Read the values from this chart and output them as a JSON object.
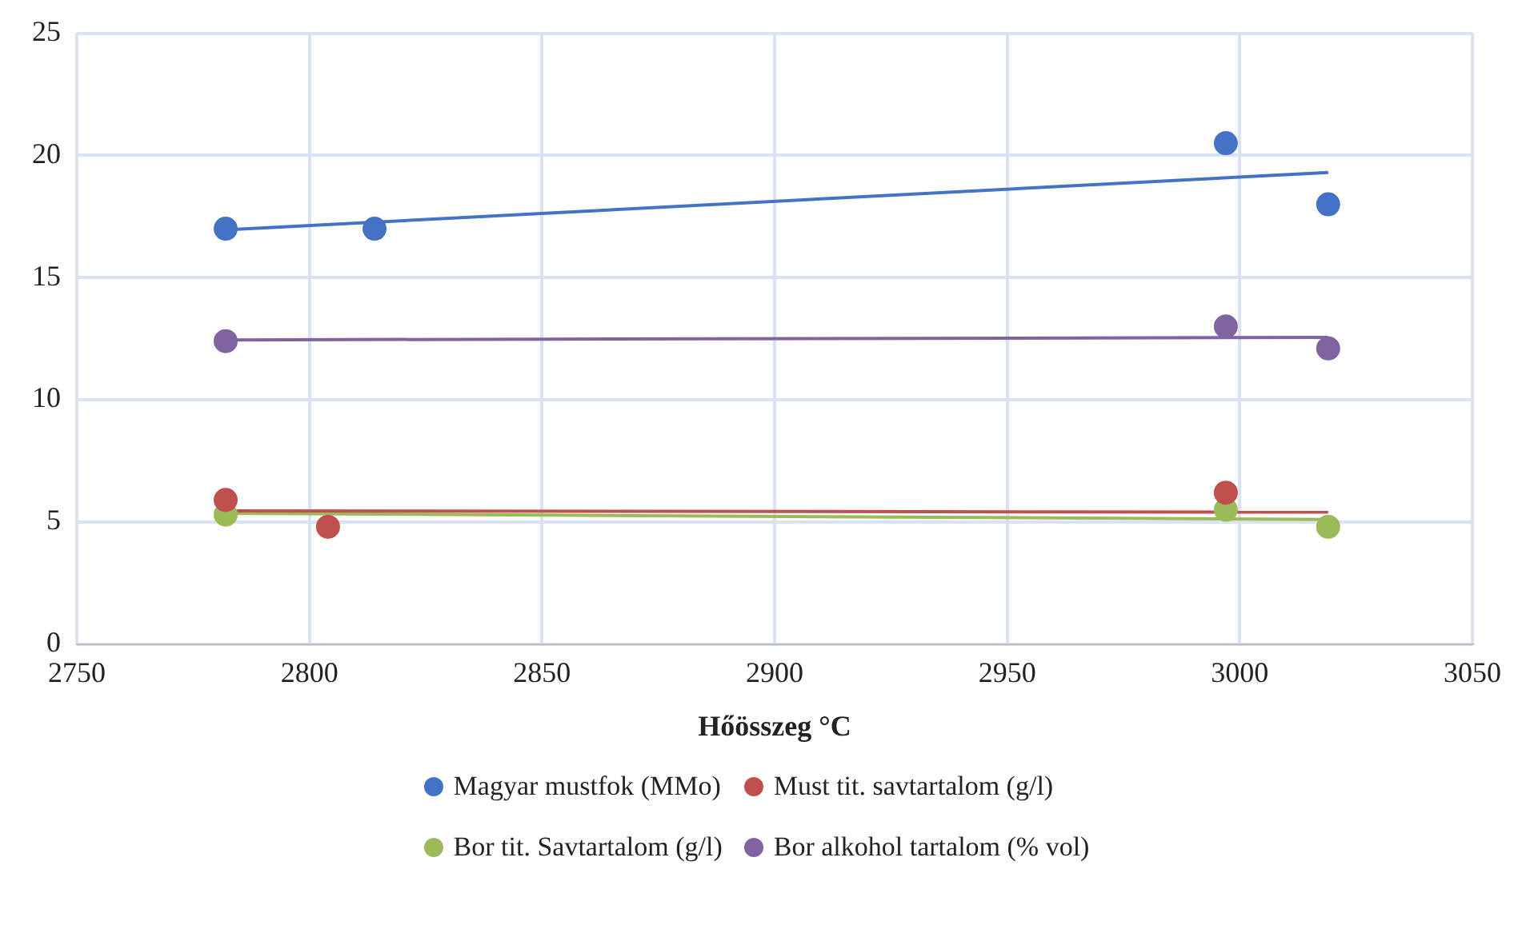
{
  "chart_data": {
    "type": "scatter",
    "xlabel": "Hőösszeg °C",
    "xlim": [
      2750,
      3050
    ],
    "xticks": [
      2750,
      2800,
      2850,
      2900,
      2950,
      3000,
      3050
    ],
    "ylim": [
      0,
      25
    ],
    "yticks": [
      0,
      5,
      10,
      15,
      20,
      25
    ],
    "grid": true,
    "legend": "bottom",
    "series": [
      {
        "name": "Magyar mustfok (MMo)",
        "color": "#4472c4",
        "x": [
          2782,
          2814,
          2997,
          3019
        ],
        "values": [
          17,
          17,
          20.5,
          18
        ],
        "marker": "circle"
      },
      {
        "name": "Must tit. savtartalom (g/l)",
        "color": "#c0504d",
        "x": [
          2782,
          2804,
          2997
        ],
        "values": [
          5.9,
          4.8,
          6.2
        ],
        "marker": "circle"
      },
      {
        "name": "Bor tit. Savtartalom (g/l)",
        "color": "#9bbb59",
        "x": [
          2782,
          2997,
          3019
        ],
        "values": [
          5.3,
          5.5,
          4.8
        ],
        "marker": "circle"
      },
      {
        "name": "Bor alkohol tartalom (% vol)",
        "color": "#8064a2",
        "x": [
          2782,
          2997,
          3019
        ],
        "values": [
          12.4,
          13,
          12.1
        ],
        "marker": "circle"
      },
      {
        "type": "line",
        "color": "#4472c4",
        "x": [
          2782,
          3019
        ],
        "values": [
          16.95,
          19.3
        ],
        "marker": "none"
      },
      {
        "type": "line",
        "color": "#c0504d",
        "x": [
          2782,
          3019
        ],
        "values": [
          5.45,
          5.4
        ],
        "marker": "none"
      },
      {
        "type": "line",
        "color": "#9bbb59",
        "x": [
          2782,
          3019
        ],
        "values": [
          5.35,
          5.1
        ],
        "marker": "none"
      },
      {
        "type": "line",
        "color": "#8064a2",
        "x": [
          2782,
          3019
        ],
        "values": [
          12.45,
          12.55
        ],
        "marker": "none"
      }
    ]
  }
}
